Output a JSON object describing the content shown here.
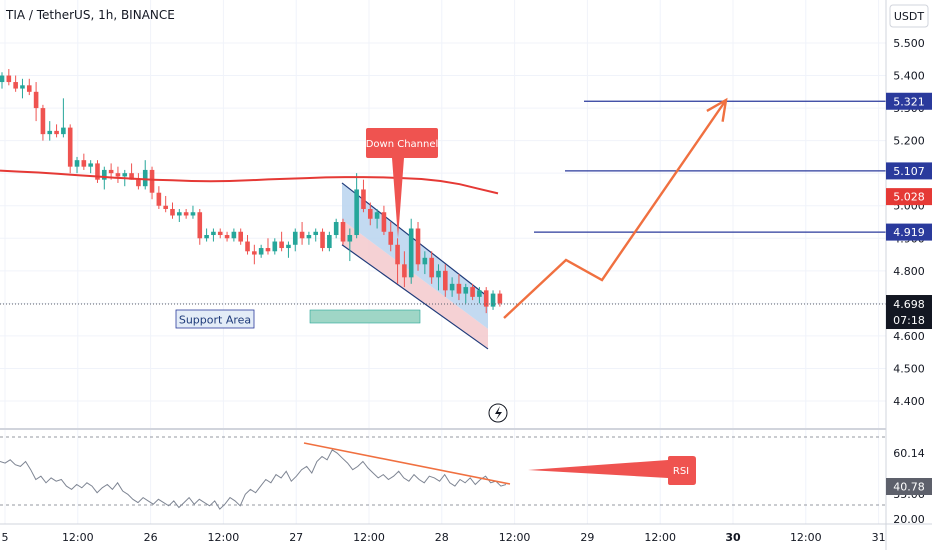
{
  "header": {
    "title": "TIA / TetherUS, 1h, BINANCE",
    "currency": "USDT"
  },
  "colors": {
    "up": "#26a69a",
    "down": "#ef5350",
    "ma": "#e53935",
    "target": "#2a3a9c",
    "arrow": "#f07040",
    "rsi": "#7e8593",
    "divergence": "#f07040",
    "channel_fill": "#f3c9cc",
    "channel_fill_upper": "#b9d3ef",
    "channel_line": "#1f3b7a",
    "support": "#9fd6c6"
  },
  "chart_data": {
    "type": "candlestick",
    "price_axis": {
      "ticks": [
        "5.500",
        "5.400",
        "5.300",
        "5.200",
        "5.100",
        "5.000",
        "4.900",
        "4.800",
        "4.700",
        "4.600",
        "4.500",
        "4.400"
      ],
      "range": [
        4.35,
        5.58
      ]
    },
    "time_axis": {
      "labels": [
        "5",
        "12:00",
        "26",
        "12:00",
        "27",
        "12:00",
        "28",
        "12:00",
        "29",
        "12:00",
        "30",
        "12:00",
        "31"
      ],
      "bold": [
        "30"
      ]
    },
    "ohlc": [
      [
        5.38,
        5.41,
        5.36,
        5.4
      ],
      [
        5.4,
        5.42,
        5.37,
        5.38
      ],
      [
        5.38,
        5.4,
        5.35,
        5.36
      ],
      [
        5.36,
        5.39,
        5.33,
        5.37
      ],
      [
        5.37,
        5.39,
        5.34,
        5.35
      ],
      [
        5.35,
        5.38,
        5.26,
        5.3
      ],
      [
        5.3,
        5.31,
        5.2,
        5.22
      ],
      [
        5.22,
        5.26,
        5.2,
        5.23
      ],
      [
        5.23,
        5.25,
        5.21,
        5.22
      ],
      [
        5.22,
        5.33,
        5.21,
        5.24
      ],
      [
        5.24,
        5.25,
        5.1,
        5.12
      ],
      [
        5.12,
        5.15,
        5.1,
        5.14
      ],
      [
        5.14,
        5.16,
        5.11,
        5.12
      ],
      [
        5.12,
        5.14,
        5.1,
        5.13
      ],
      [
        5.13,
        5.14,
        5.07,
        5.08
      ],
      [
        5.08,
        5.12,
        5.05,
        5.11
      ],
      [
        5.11,
        5.13,
        5.08,
        5.1
      ],
      [
        5.1,
        5.12,
        5.07,
        5.09
      ],
      [
        5.09,
        5.11,
        5.06,
        5.1
      ],
      [
        5.1,
        5.13,
        5.08,
        5.08
      ],
      [
        5.08,
        5.1,
        5.05,
        5.06
      ],
      [
        5.06,
        5.14,
        5.05,
        5.11
      ],
      [
        5.11,
        5.12,
        5.02,
        5.04
      ],
      [
        5.04,
        5.06,
        4.99,
        5.0
      ],
      [
        5.0,
        5.03,
        4.98,
        4.99
      ],
      [
        4.99,
        5.01,
        4.96,
        4.97
      ],
      [
        4.97,
        4.99,
        4.95,
        4.98
      ],
      [
        4.98,
        4.99,
        4.96,
        4.97
      ],
      [
        4.97,
        5.0,
        4.96,
        4.98
      ],
      [
        4.98,
        4.99,
        4.88,
        4.9
      ],
      [
        4.9,
        4.93,
        4.89,
        4.91
      ],
      [
        4.91,
        4.93,
        4.89,
        4.92
      ],
      [
        4.92,
        4.93,
        4.9,
        4.91
      ],
      [
        4.91,
        4.92,
        4.89,
        4.9
      ],
      [
        4.9,
        4.93,
        4.89,
        4.92
      ],
      [
        4.92,
        4.93,
        4.88,
        4.89
      ],
      [
        4.89,
        4.91,
        4.85,
        4.86
      ],
      [
        4.86,
        4.88,
        4.82,
        4.85
      ],
      [
        4.85,
        4.88,
        4.84,
        4.87
      ],
      [
        4.87,
        4.9,
        4.85,
        4.86
      ],
      [
        4.86,
        4.9,
        4.85,
        4.89
      ],
      [
        4.89,
        4.92,
        4.86,
        4.87
      ],
      [
        4.87,
        4.89,
        4.84,
        4.88
      ],
      [
        4.88,
        4.93,
        4.86,
        4.92
      ],
      [
        4.92,
        4.95,
        4.88,
        4.9
      ],
      [
        4.9,
        4.92,
        4.88,
        4.91
      ],
      [
        4.91,
        4.93,
        4.89,
        4.92
      ],
      [
        4.92,
        4.93,
        4.86,
        4.87
      ],
      [
        4.87,
        4.92,
        4.86,
        4.91
      ],
      [
        4.91,
        4.96,
        4.9,
        4.95
      ],
      [
        4.95,
        4.96,
        4.88,
        4.89
      ],
      [
        4.89,
        4.93,
        4.83,
        4.91
      ],
      [
        4.91,
        5.1,
        4.9,
        5.05
      ],
      [
        5.05,
        5.08,
        4.98,
        4.99
      ],
      [
        4.99,
        5.01,
        4.94,
        4.96
      ],
      [
        4.96,
        4.99,
        4.93,
        4.98
      ],
      [
        4.98,
        5.0,
        4.91,
        4.92
      ],
      [
        4.92,
        4.95,
        4.86,
        4.88
      ],
      [
        4.88,
        4.9,
        4.76,
        4.82
      ],
      [
        4.82,
        4.86,
        4.75,
        4.78
      ],
      [
        4.78,
        4.96,
        4.76,
        4.93
      ],
      [
        4.93,
        4.95,
        4.8,
        4.82
      ],
      [
        4.82,
        4.86,
        4.79,
        4.84
      ],
      [
        4.84,
        4.86,
        4.76,
        4.78
      ],
      [
        4.78,
        4.82,
        4.74,
        4.8
      ],
      [
        4.8,
        4.82,
        4.72,
        4.74
      ],
      [
        4.74,
        4.78,
        4.72,
        4.76
      ],
      [
        4.76,
        4.79,
        4.71,
        4.73
      ],
      [
        4.73,
        4.76,
        4.7,
        4.75
      ],
      [
        4.75,
        4.76,
        4.71,
        4.72
      ],
      [
        4.72,
        4.75,
        4.7,
        4.74
      ],
      [
        4.74,
        4.75,
        4.67,
        4.69
      ],
      [
        4.69,
        4.74,
        4.68,
        4.73
      ],
      [
        4.73,
        4.74,
        4.69,
        4.7
      ]
    ],
    "moving_average": [
      5.108,
      5.105,
      5.102,
      5.098,
      5.094,
      5.09,
      5.086,
      5.083,
      5.08,
      5.078,
      5.076,
      5.075,
      5.076,
      5.078,
      5.081,
      5.083,
      5.085,
      5.087,
      5.088,
      5.088,
      5.087,
      5.085,
      5.082,
      5.076,
      5.066,
      5.052,
      5.038
    ],
    "current_price": {
      "value": "4.698",
      "countdown": "07:18"
    },
    "levels": [
      {
        "value": 5.321,
        "label": "5.321"
      },
      {
        "value": 5.107,
        "label": "5.107"
      },
      {
        "value": 4.919,
        "label": "4.919"
      }
    ],
    "ma_tag": {
      "value": 5.028,
      "label": "5.028"
    },
    "support_label": "Support Area",
    "down_channel_label": "Down Channel",
    "projected_path": [
      [
        504,
        318
      ],
      [
        566,
        260
      ],
      [
        602,
        280
      ],
      [
        726,
        100
      ]
    ],
    "rsi": {
      "ticks": [
        "60.14",
        "35.06",
        "20.00"
      ],
      "current": "40.78",
      "range": [
        18,
        82
      ],
      "label": "RSI",
      "values": [
        55,
        54,
        56,
        53,
        52,
        55,
        50,
        44,
        46,
        42,
        45,
        43,
        44,
        40,
        38,
        41,
        39,
        42,
        40,
        36,
        39,
        41,
        38,
        42,
        37,
        35,
        32,
        30,
        33,
        31,
        29,
        32,
        30,
        28,
        31,
        27,
        30,
        33,
        29,
        32,
        30,
        28,
        31,
        26,
        29,
        33,
        31,
        28,
        35,
        38,
        36,
        40,
        44,
        42,
        47,
        45,
        49,
        43,
        46,
        50,
        52,
        48,
        55,
        58,
        56,
        62,
        60,
        57,
        54,
        50,
        52,
        55,
        51,
        48,
        45,
        47,
        44,
        46,
        49,
        45,
        43,
        47,
        44,
        42,
        46,
        45,
        43,
        47,
        42,
        40,
        44,
        42,
        45,
        41,
        44,
        46,
        42,
        43,
        40,
        41
      ]
    }
  }
}
